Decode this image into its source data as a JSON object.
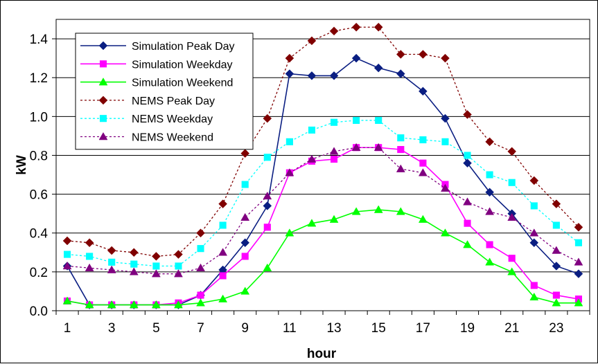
{
  "chart_data": {
    "type": "line",
    "title": "",
    "xlabel": "hour",
    "ylabel": "kW",
    "x": [
      1,
      2,
      3,
      4,
      5,
      6,
      7,
      8,
      9,
      10,
      11,
      12,
      13,
      14,
      15,
      16,
      17,
      18,
      19,
      20,
      21,
      22,
      23,
      24
    ],
    "x_tick_labels": [
      "1",
      "3",
      "5",
      "7",
      "9",
      "11",
      "13",
      "15",
      "17",
      "19",
      "21",
      "23"
    ],
    "y_tick_labels": [
      "0.0",
      "0.2",
      "0.4",
      "0.6",
      "0.8",
      "1.0",
      "1.2",
      "1.4"
    ],
    "ylim": [
      0,
      1.5
    ],
    "xlim": [
      0.5,
      24.5
    ],
    "grid": "horizontal",
    "legend_position": "top-left",
    "series": [
      {
        "name": "Simulation Peak Day",
        "color": "#0A1E82",
        "marker": "diamond",
        "line": "solid",
        "values": [
          0.23,
          0.03,
          0.03,
          0.03,
          0.03,
          0.03,
          0.08,
          0.21,
          0.35,
          0.54,
          1.22,
          1.21,
          1.21,
          1.3,
          1.25,
          1.22,
          1.13,
          0.99,
          0.76,
          0.61,
          0.5,
          0.35,
          0.23,
          0.19
        ]
      },
      {
        "name": "Simulation Weekday",
        "color": "#FF00FF",
        "marker": "square",
        "line": "solid",
        "values": [
          0.05,
          0.03,
          0.03,
          0.03,
          0.03,
          0.04,
          0.08,
          0.18,
          0.28,
          0.43,
          0.71,
          0.77,
          0.78,
          0.84,
          0.84,
          0.83,
          0.76,
          0.65,
          0.45,
          0.34,
          0.27,
          0.13,
          0.08,
          0.06
        ]
      },
      {
        "name": "Simulation Weekend",
        "color": "#00FF00",
        "marker": "triangle",
        "line": "solid",
        "values": [
          0.05,
          0.03,
          0.03,
          0.03,
          0.03,
          0.03,
          0.04,
          0.06,
          0.1,
          0.22,
          0.4,
          0.45,
          0.47,
          0.51,
          0.52,
          0.51,
          0.47,
          0.4,
          0.34,
          0.25,
          0.2,
          0.07,
          0.04,
          0.04
        ]
      },
      {
        "name": "NEMS Peak Day",
        "color": "#800000",
        "marker": "diamond",
        "line": "dotted",
        "values": [
          0.36,
          0.35,
          0.31,
          0.3,
          0.28,
          0.29,
          0.4,
          0.55,
          0.81,
          0.99,
          1.3,
          1.39,
          1.44,
          1.46,
          1.46,
          1.32,
          1.32,
          1.3,
          1.01,
          0.87,
          0.82,
          0.67,
          0.55,
          0.43
        ]
      },
      {
        "name": "NEMS Weekday",
        "color": "#00FFFF",
        "marker": "square",
        "line": "dotted",
        "values": [
          0.29,
          0.28,
          0.25,
          0.24,
          0.23,
          0.23,
          0.32,
          0.44,
          0.65,
          0.79,
          0.87,
          0.93,
          0.97,
          0.98,
          0.98,
          0.89,
          0.88,
          0.87,
          0.8,
          0.7,
          0.66,
          0.54,
          0.44,
          0.35
        ]
      },
      {
        "name": "NEMS Weekend",
        "color": "#800080",
        "marker": "triangle",
        "line": "dotted",
        "values": [
          0.23,
          0.22,
          0.21,
          0.2,
          0.19,
          0.19,
          0.22,
          0.3,
          0.48,
          0.59,
          0.71,
          0.78,
          0.82,
          0.84,
          0.84,
          0.73,
          0.71,
          0.63,
          0.56,
          0.51,
          0.48,
          0.4,
          0.31,
          0.25
        ]
      }
    ]
  }
}
